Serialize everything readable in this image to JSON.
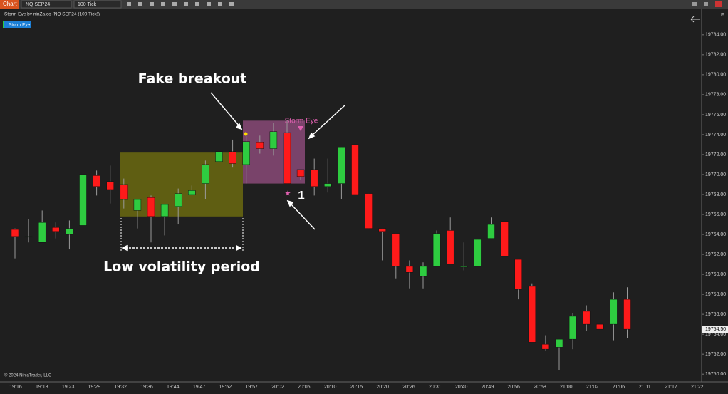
{
  "app": {
    "tab": "Chart",
    "instrument": "NQ SEP24",
    "interval": "100 Tick",
    "panel_button": "F"
  },
  "chart_data": {
    "type": "candlestick",
    "header": "Storm Eye by ninZa.co (NQ SEP24 (100 Tick))",
    "indicator_button": "Storm Eye",
    "copyright": "© 2024 NinjaTrader, LLC",
    "annotations": {
      "fake_breakout": "Fake breakout",
      "low_volatility": "Low volatility period",
      "storm_eye": "Storm Eye",
      "signal_count": "1"
    },
    "zones": [
      {
        "name": "Low volatility period",
        "low": 19765.8,
        "high": 19772.2,
        "color": "#6b6a10"
      },
      {
        "name": "Storm Eye",
        "low": 19769.1,
        "high": 19775.4,
        "color": "#8a4a78"
      }
    ],
    "time_labels": [
      "19:16",
      "19:18",
      "19:23",
      "19:29",
      "19:32",
      "19:36",
      "19:44",
      "19:47",
      "19:52",
      "19:57",
      "20:02",
      "20:05",
      "20:10",
      "20:15",
      "20:20",
      "20:26",
      "20:31",
      "20:40",
      "20:49",
      "20:56",
      "20:58",
      "21:00",
      "21:02",
      "21:06",
      "21:11",
      "21:17",
      "21:22"
    ],
    "up_color": "#2ecc40",
    "down_color": "#ff1a1a",
    "open": [
      19764.5,
      19763.8,
      19763.2,
      19764.7,
      19764.0,
      19764.9,
      19769.9,
      19769.3,
      19769.0,
      19766.4,
      19767.7,
      19765.8,
      19766.8,
      19768.0,
      19769.1,
      19771.3,
      19772.3,
      19771.0,
      19773.2,
      19772.6,
      19774.2,
      19770.5,
      19770.5,
      19768.8,
      19769.1,
      19773.0,
      19768.1,
      19764.6,
      19764.1,
      19760.8,
      19759.8,
      19760.8,
      19764.4,
      19760.8,
      19760.8,
      19763.6,
      19765.3,
      19761.5,
      19758.8,
      19753.0,
      19752.7,
      19753.5,
      19756.3,
      19755.0,
      19755.0,
      19757.5
    ],
    "high": [
      19764.6,
      19765.5,
      19766.4,
      19765.2,
      19765.4,
      19770.2,
      19770.4,
      19770.9,
      19769.6,
      19767.5,
      19767.9,
      19767.0,
      19768.6,
      19768.9,
      19771.4,
      19773.4,
      19773.5,
      19773.9,
      19773.9,
      19775.2,
      19775.4,
      19770.5,
      19771.6,
      19771.6,
      19772.7,
      19773.0,
      19768.1,
      19764.6,
      19764.1,
      19761.4,
      19761.2,
      19764.4,
      19765.7,
      19763.2,
      19763.5,
      19765.7,
      19765.3,
      19761.5,
      19759.1,
      19753.9,
      19753.5,
      19756.1,
      19756.9,
      19755.0,
      19758.2,
      19758.7
    ],
    "low": [
      19761.6,
      19763.2,
      19763.2,
      19763.6,
      19762.5,
      19764.8,
      19767.9,
      19767.1,
      19766.6,
      19764.6,
      19763.2,
      19763.9,
      19765.0,
      19768.0,
      19767.5,
      19770.1,
      19770.7,
      19769.1,
      19772.1,
      19771.9,
      19769.1,
      19769.5,
      19767.9,
      19768.2,
      19767.5,
      19767.1,
      19764.6,
      19761.4,
      19759.6,
      19758.6,
      19758.6,
      19760.8,
      19761.0,
      19760.4,
      19760.8,
      19763.6,
      19761.8,
      19757.5,
      19753.2,
      19752.4,
      19750.4,
      19752.5,
      19754.3,
      19754.5,
      19753.4,
      19753.6
    ],
    "close": [
      19763.8,
      19763.8,
      19765.2,
      19764.3,
      19764.6,
      19770.0,
      19768.8,
      19768.5,
      19767.5,
      19767.5,
      19765.8,
      19767.0,
      19768.1,
      19768.4,
      19771.0,
      19772.3,
      19771.1,
      19773.3,
      19772.6,
      19774.3,
      19769.1,
      19769.8,
      19768.8,
      19769.1,
      19772.7,
      19768.0,
      19764.6,
      19764.3,
      19760.8,
      19760.2,
      19760.8,
      19764.1,
      19761.0,
      19760.8,
      19763.5,
      19765.0,
      19761.8,
      19758.5,
      19753.2,
      19752.5,
      19753.5,
      19755.8,
      19755.0,
      19754.5,
      19757.5,
      19754.5
    ],
    "ylim": [
      19749.3,
      19786.2
    ],
    "yticks": [
      {
        "value": 19784,
        "label": "19784.00"
      },
      {
        "value": 19782,
        "label": "19782.00"
      },
      {
        "value": 19780,
        "label": "19780.00"
      },
      {
        "value": 19778,
        "label": "19778.00"
      },
      {
        "value": 19776,
        "label": "19776.00"
      },
      {
        "value": 19774,
        "label": "19774.00"
      },
      {
        "value": 19772,
        "label": "19772.00"
      },
      {
        "value": 19770,
        "label": "19770.00"
      },
      {
        "value": 19768,
        "label": "19768.00"
      },
      {
        "value": 19766,
        "label": "19766.00"
      },
      {
        "value": 19764,
        "label": "19764.00"
      },
      {
        "value": 19762,
        "label": "19762.00"
      },
      {
        "value": 19760,
        "label": "19760.00"
      },
      {
        "value": 19758,
        "label": "19758.00"
      },
      {
        "value": 19756,
        "label": "19756.00"
      },
      {
        "value": 19754,
        "label": "19754.00"
      },
      {
        "value": 19752,
        "label": "19752.00"
      },
      {
        "value": 19750,
        "label": "19750.00"
      }
    ],
    "last_price": {
      "value": 19754.5,
      "label": "19754.50"
    }
  }
}
